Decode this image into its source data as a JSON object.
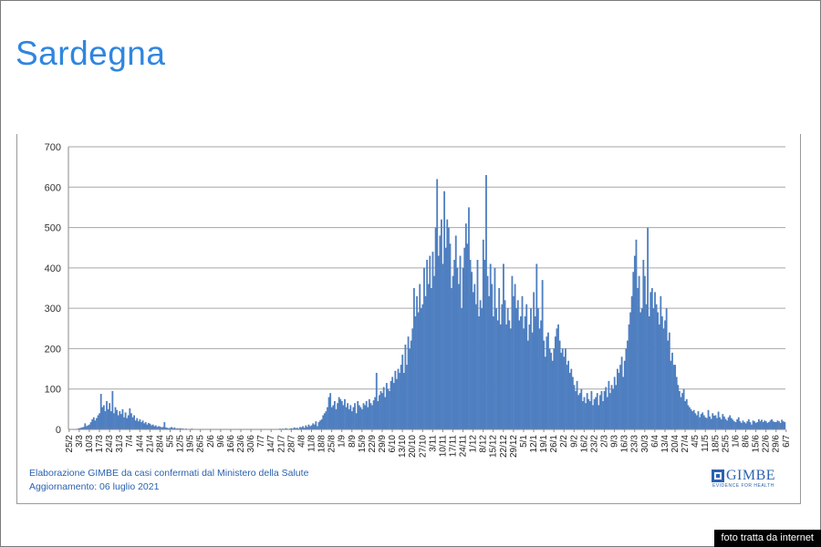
{
  "page": {
    "title": "Sardegna",
    "source_line": "Elaborazione GIMBE da casi confermati dal Ministero della Salute",
    "update_line": "Aggiornamento: 06 luglio 2021",
    "logo_name": "GIMBE",
    "logo_tagline": "EVIDENCE FOR HEALTH",
    "credit": "foto tratta da internet"
  },
  "colors": {
    "title": "#2f86e0",
    "bars": "#4f7fc0",
    "grid": "#a6a6a6",
    "source_text": "#2a62b0"
  },
  "chart_data": {
    "type": "bar",
    "ylim": [
      0,
      700
    ],
    "yticks": [
      0,
      100,
      200,
      300,
      400,
      500,
      600,
      700
    ],
    "grid": true,
    "start_date": "2020-02-25",
    "tick_labels": [
      "25/2",
      "3/3",
      "10/3",
      "17/3",
      "24/3",
      "31/3",
      "7/4",
      "14/4",
      "21/4",
      "28/4",
      "5/5",
      "12/5",
      "19/5",
      "26/5",
      "2/6",
      "9/6",
      "16/6",
      "23/6",
      "30/6",
      "7/7",
      "14/7",
      "21/7",
      "28/7",
      "4/8",
      "11/8",
      "18/8",
      "25/8",
      "1/9",
      "8/9",
      "15/9",
      "22/9",
      "29/9",
      "6/10",
      "13/10",
      "20/10",
      "27/10",
      "3/11",
      "10/11",
      "17/11",
      "24/11",
      "1/12",
      "8/12",
      "15/12",
      "22/12",
      "29/12",
      "5/1",
      "12/1",
      "19/1",
      "26/1",
      "2/2",
      "9/2",
      "16/2",
      "23/2",
      "2/3",
      "9/3",
      "16/3",
      "23/3",
      "30/3",
      "6/4",
      "13/4",
      "20/4",
      "27/4",
      "4/5",
      "11/5",
      "18/5",
      "25/5",
      "1/6",
      "8/6",
      "15/6",
      "22/6",
      "29/6",
      "6/7"
    ],
    "weekly_values": [
      [
        0,
        0,
        0,
        0,
        0,
        1,
        2
      ],
      [
        3,
        4,
        5,
        6,
        15,
        8,
        10
      ],
      [
        12,
        18,
        25,
        30,
        22,
        28,
        35
      ],
      [
        40,
        88,
        55,
        60,
        45,
        70,
        50
      ],
      [
        65,
        45,
        95,
        40,
        55,
        48,
        35
      ],
      [
        45,
        38,
        50,
        30,
        42,
        28,
        35
      ],
      [
        52,
        40,
        30,
        35,
        22,
        28,
        20
      ],
      [
        25,
        18,
        22,
        15,
        18,
        12,
        16
      ],
      [
        14,
        10,
        12,
        8,
        10,
        6,
        8
      ],
      [
        7,
        5,
        6,
        18,
        5,
        4,
        3
      ],
      [
        4,
        6,
        3,
        5,
        2,
        3,
        2
      ],
      [
        3,
        2,
        2,
        1,
        2,
        1,
        1
      ],
      [
        1,
        2,
        1,
        1,
        1,
        0,
        1
      ],
      [
        1,
        0,
        1,
        1,
        0,
        1,
        0
      ],
      [
        1,
        1,
        0,
        1,
        0,
        0,
        1
      ],
      [
        1,
        0,
        0,
        1,
        0,
        1,
        0
      ],
      [
        0,
        1,
        0,
        0,
        1,
        0,
        0
      ],
      [
        1,
        0,
        1,
        0,
        0,
        1,
        0
      ],
      [
        0,
        1,
        0,
        0,
        1,
        0,
        1
      ],
      [
        0,
        0,
        1,
        0,
        0,
        1,
        0
      ],
      [
        1,
        0,
        0,
        1,
        0,
        0,
        2
      ],
      [
        1,
        2,
        1,
        3,
        2,
        1,
        2
      ],
      [
        3,
        2,
        5,
        3,
        4,
        2,
        6
      ],
      [
        5,
        8,
        4,
        10,
        6,
        12,
        8
      ],
      [
        10,
        15,
        12,
        20,
        8,
        18,
        22
      ],
      [
        25,
        35,
        40,
        45,
        55,
        80,
        90
      ],
      [
        55,
        60,
        70,
        50,
        65,
        80,
        75
      ],
      [
        70,
        60,
        75,
        55,
        65,
        50,
        60
      ],
      [
        45,
        55,
        65,
        40,
        70,
        60,
        55
      ],
      [
        50,
        65,
        60,
        70,
        55,
        75,
        65
      ],
      [
        60,
        72,
        80,
        140,
        70,
        85,
        95
      ],
      [
        90,
        105,
        80,
        115,
        100,
        95,
        120
      ],
      [
        130,
        115,
        145,
        125,
        150,
        140,
        160
      ],
      [
        185,
        140,
        210,
        160,
        230,
        200,
        220
      ],
      [
        250,
        350,
        280,
        330,
        290,
        360,
        300
      ],
      [
        310,
        400,
        330,
        420,
        360,
        430,
        350
      ],
      [
        440,
        380,
        500,
        620,
        430,
        480,
        520
      ],
      [
        410,
        590,
        450,
        520,
        500,
        460,
        350
      ],
      [
        380,
        420,
        480,
        400,
        360,
        430,
        300
      ],
      [
        400,
        450,
        510,
        460,
        550,
        420,
        390
      ],
      [
        340,
        360,
        310,
        420,
        280,
        320,
        300
      ],
      [
        470,
        420,
        630,
        380,
        330,
        410,
        360
      ],
      [
        280,
        400,
        300,
        270,
        350,
        260,
        310
      ],
      [
        410,
        320,
        260,
        300,
        270,
        250,
        380
      ],
      [
        330,
        360,
        300,
        320,
        270,
        280,
        330
      ],
      [
        250,
        280,
        310,
        220,
        260,
        300,
        240
      ],
      [
        340,
        280,
        410,
        300,
        250,
        270,
        370
      ],
      [
        220,
        180,
        230,
        240,
        200,
        190,
        170
      ],
      [
        200,
        230,
        250,
        260,
        220,
        190,
        200
      ],
      [
        180,
        200,
        160,
        170,
        140,
        150,
        130
      ],
      [
        110,
        95,
        120,
        85,
        90,
        100,
        70
      ],
      [
        80,
        65,
        90,
        75,
        70,
        95,
        60
      ],
      [
        75,
        80,
        90,
        60,
        85,
        95,
        70
      ],
      [
        95,
        105,
        80,
        120,
        90,
        110,
        100
      ],
      [
        130,
        110,
        150,
        140,
        160,
        180,
        130
      ],
      [
        170,
        200,
        220,
        260,
        290,
        330,
        390
      ],
      [
        430,
        470,
        350,
        380,
        290,
        300,
        420
      ],
      [
        380,
        310,
        500,
        280,
        340,
        350,
        300
      ],
      [
        340,
        310,
        290,
        260,
        330,
        280,
        250
      ],
      [
        270,
        300,
        220,
        240,
        170,
        190,
        160
      ],
      [
        160,
        130,
        110,
        95,
        80,
        90,
        100
      ],
      [
        70,
        75,
        60,
        55,
        50,
        45,
        48
      ],
      [
        40,
        35,
        45,
        30,
        38,
        42,
        35
      ],
      [
        30,
        28,
        48,
        32,
        26,
        40,
        34
      ],
      [
        35,
        28,
        44,
        30,
        25,
        38,
        32
      ],
      [
        26,
        22,
        30,
        35,
        28,
        24,
        20
      ],
      [
        18,
        25,
        30,
        20,
        16,
        22,
        18
      ],
      [
        15,
        20,
        25,
        18,
        12,
        22,
        20
      ],
      [
        16,
        18,
        25,
        20,
        24,
        18,
        22
      ],
      [
        20,
        16,
        18,
        22,
        25,
        20,
        18
      ],
      [
        18,
        22,
        20,
        16,
        24,
        20,
        18
      ]
    ]
  }
}
